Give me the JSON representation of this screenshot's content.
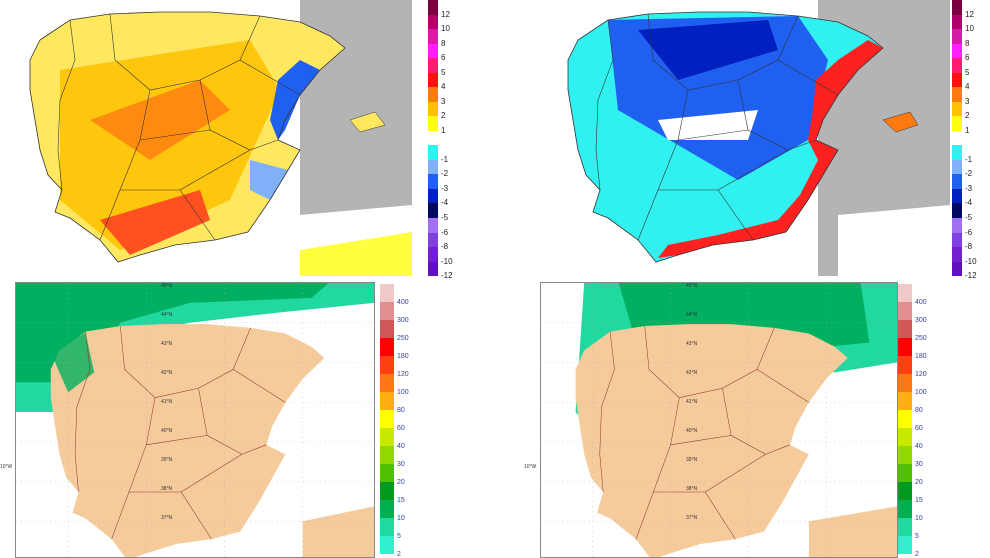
{
  "top_legend": {
    "labels": [
      "12",
      "10",
      "8",
      "6",
      "5",
      "4",
      "3",
      "2",
      "1",
      "",
      "-1",
      "-2",
      "-3",
      "-4",
      "-5",
      "-6",
      "-8",
      "-10",
      "-12"
    ],
    "colors": [
      "#7a0040",
      "#b0006a",
      "#d41ca8",
      "#ff20ff",
      "#ff1c70",
      "#ff1010",
      "#ff7a10",
      "#ffc000",
      "#ffff10",
      "#ffffff",
      "#30f0f0",
      "#80b0f8",
      "#2060f0",
      "#0020c0",
      "#000860",
      "#a070f0",
      "#8040e0",
      "#7020d0",
      "#6010c0"
    ]
  },
  "bottom_legend": {
    "labels": [
      "400",
      "300",
      "250",
      "180",
      "120",
      "100",
      "80",
      "60",
      "40",
      "30",
      "20",
      "15",
      "10",
      "5",
      "2"
    ],
    "colors": [
      "#f0c8c8",
      "#e09090",
      "#d05858",
      "#ff0000",
      "#ff4010",
      "#ff7810",
      "#ffb010",
      "#ffff00",
      "#c8e800",
      "#90d800",
      "#50c000",
      "#009a20",
      "#00b050",
      "#20d8a0",
      "#30f0d0"
    ]
  },
  "lat_labels": [
    "45°N",
    "44°N",
    "43°N",
    "42°N",
    "41°N",
    "40°N",
    "39°N",
    "38°N",
    "37°N"
  ],
  "lon_label": "10°W",
  "colors": {
    "outside": "#b4b4b4",
    "land": "#f6cb9c",
    "border": "#333333",
    "bottom_border": "#8a3a2a"
  }
}
